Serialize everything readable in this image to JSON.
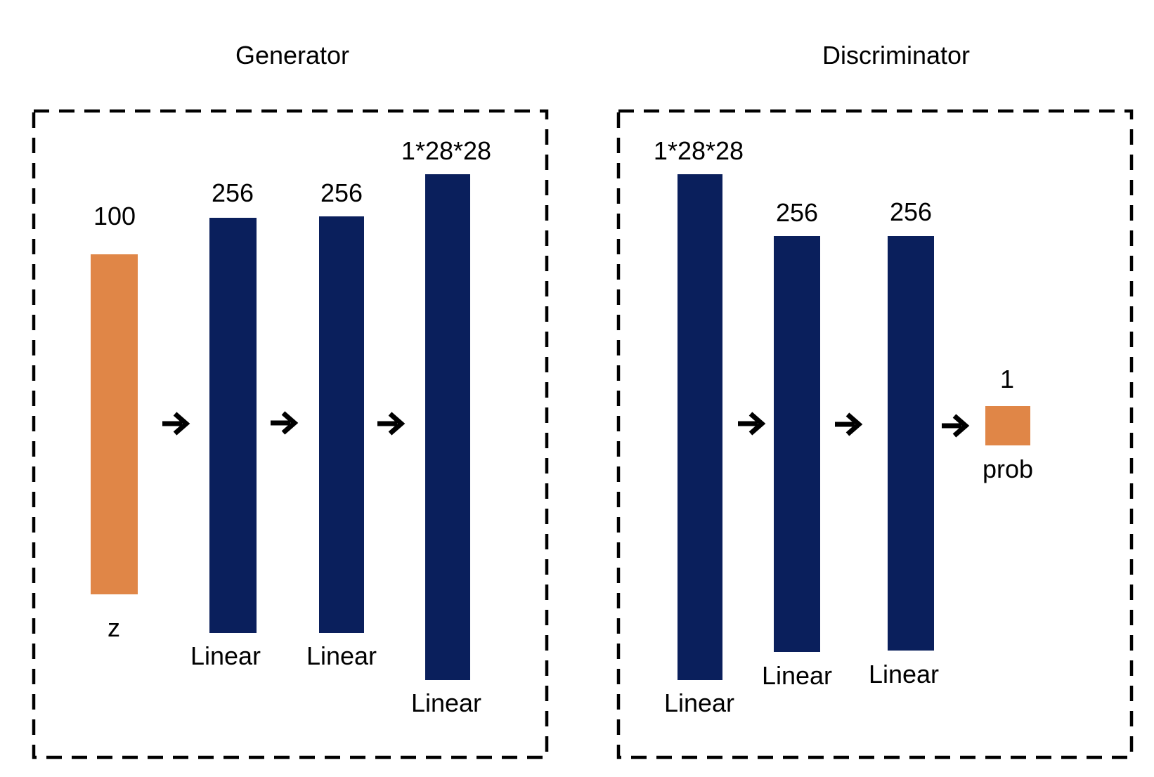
{
  "colors": {
    "input_output": "#E08647",
    "hidden_layer": "#0A1F5C",
    "frame_dash": "#000000",
    "arrow": "#000000"
  },
  "generator": {
    "title": "Generator",
    "layers": [
      {
        "size_label": "100",
        "name_label": "z",
        "kind": "input_output"
      },
      {
        "size_label": "256",
        "name_label": "Linear",
        "kind": "hidden_layer"
      },
      {
        "size_label": "256",
        "name_label": "Linear",
        "kind": "hidden_layer"
      },
      {
        "size_label": "1*28*28",
        "name_label": "Linear",
        "kind": "hidden_layer"
      }
    ],
    "arrow_icon": "right-arrow-icon"
  },
  "discriminator": {
    "title": "Discriminator",
    "layers": [
      {
        "size_label": "1*28*28",
        "name_label": "Linear",
        "kind": "hidden_layer"
      },
      {
        "size_label": "256",
        "name_label": "Linear",
        "kind": "hidden_layer"
      },
      {
        "size_label": "256",
        "name_label": "Linear",
        "kind": "hidden_layer"
      },
      {
        "size_label": "1",
        "name_label": "prob",
        "kind": "input_output"
      }
    ],
    "arrow_icon": "right-arrow-icon"
  }
}
